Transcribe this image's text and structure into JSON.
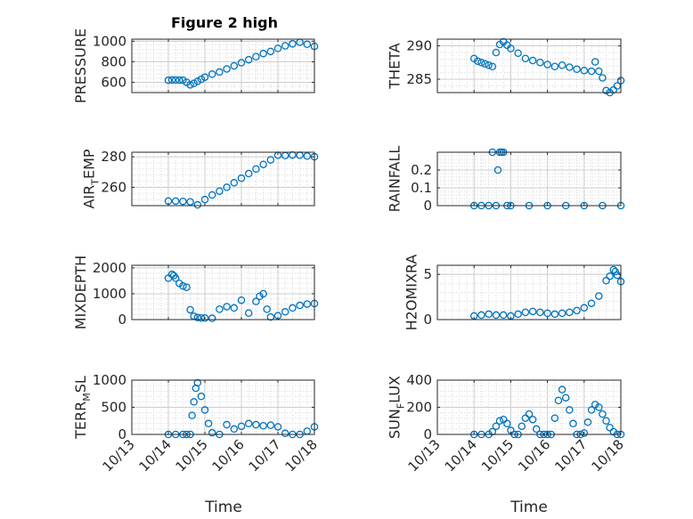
{
  "figure": {
    "title": "Figure 2 high",
    "xlabel": "Time",
    "xtick_labels": [
      "10/13",
      "10/14",
      "10/15",
      "10/16",
      "10/17",
      "10/18"
    ]
  },
  "colors": {
    "marker": "#0072bd",
    "axis": "#262626",
    "grid": "#d9d9d9"
  },
  "chart_data": [
    {
      "type": "scatter",
      "ylabel": {
        "main": "PRESSURE",
        "sub": "",
        "after": ""
      },
      "ylim": [
        500,
        1020
      ],
      "yticks": [
        600,
        800,
        1000
      ],
      "grid": true,
      "x": [
        0.0,
        0.1,
        0.2,
        0.3,
        0.4,
        0.5,
        0.6,
        0.7,
        0.8,
        0.9,
        1.0,
        1.2,
        1.4,
        1.6,
        1.8,
        2.0,
        2.2,
        2.4,
        2.6,
        2.8,
        3.0,
        3.2,
        3.4,
        3.6,
        3.8,
        4.0
      ],
      "y": [
        620,
        622,
        622,
        621,
        620,
        600,
        575,
        590,
        610,
        630,
        650,
        680,
        700,
        730,
        760,
        790,
        820,
        850,
        880,
        900,
        930,
        955,
        975,
        990,
        970,
        950
      ]
    },
    {
      "type": "scatter",
      "ylabel": {
        "main": "THETA",
        "sub": "",
        "after": ""
      },
      "ylim": [
        283,
        291
      ],
      "yticks": [
        285,
        290
      ],
      "grid": true,
      "x": [
        0.0,
        0.1,
        0.2,
        0.3,
        0.4,
        0.5,
        0.6,
        0.7,
        0.8,
        0.9,
        1.0,
        1.2,
        1.4,
        1.6,
        1.8,
        2.0,
        2.2,
        2.4,
        2.6,
        2.8,
        3.0,
        3.2,
        3.3,
        3.4,
        3.5,
        3.6,
        3.7,
        3.8,
        3.9,
        4.0
      ],
      "y": [
        288.1,
        287.7,
        287.5,
        287.3,
        287.1,
        286.9,
        289.0,
        290.2,
        290.6,
        290.1,
        289.6,
        288.9,
        288.1,
        287.8,
        287.5,
        287.2,
        286.9,
        287.1,
        286.8,
        286.5,
        286.3,
        286.2,
        287.6,
        286.2,
        285.2,
        283.3,
        283.0,
        283.4,
        284.0,
        284.8
      ]
    },
    {
      "type": "scatter",
      "ylabel": {
        "main": "AIR",
        "sub": "T",
        "after": "EMP"
      },
      "ylim": [
        248,
        283
      ],
      "yticks": [
        260,
        280
      ],
      "grid": true,
      "x": [
        0.0,
        0.2,
        0.4,
        0.6,
        0.8,
        1.0,
        1.2,
        1.4,
        1.6,
        1.8,
        2.0,
        2.2,
        2.4,
        2.6,
        2.8,
        3.0,
        3.2,
        3.4,
        3.6,
        3.8,
        4.0
      ],
      "y": [
        251.0,
        251.0,
        250.8,
        250.5,
        248.5,
        252.0,
        255.0,
        257.5,
        260.0,
        263.0,
        266.0,
        269.0,
        272.0,
        275.0,
        278.0,
        281.0,
        280.8,
        281.2,
        281.0,
        280.5,
        280.0
      ]
    },
    {
      "type": "scatter",
      "ylabel": {
        "main": "RAINFALL",
        "sub": "",
        "after": ""
      },
      "ylim": [
        0,
        0.3
      ],
      "yticks": [
        0,
        0.1,
        0.2
      ],
      "grid": true,
      "x": [
        0.0,
        0.2,
        0.4,
        0.5,
        0.6,
        0.65,
        0.7,
        0.75,
        0.8,
        0.9,
        1.0,
        1.5,
        2.0,
        2.5,
        3.0,
        3.5,
        4.0
      ],
      "y": [
        0,
        0,
        0,
        0.3,
        0,
        0.2,
        0.3,
        0.3,
        0.3,
        0,
        0,
        0,
        0,
        0,
        0,
        0,
        0
      ]
    },
    {
      "type": "scatter",
      "ylabel": {
        "main": "MIXDEPTH",
        "sub": "",
        "after": ""
      },
      "ylim": [
        0,
        2100
      ],
      "yticks": [
        0,
        1000,
        2000
      ],
      "grid": true,
      "x": [
        0.0,
        0.1,
        0.15,
        0.2,
        0.3,
        0.4,
        0.5,
        0.6,
        0.7,
        0.8,
        0.9,
        1.0,
        1.2,
        1.4,
        1.6,
        1.8,
        2.0,
        2.2,
        2.4,
        2.5,
        2.6,
        2.7,
        2.8,
        3.0,
        3.2,
        3.4,
        3.6,
        3.8,
        4.0
      ],
      "y": [
        1600,
        1750,
        1700,
        1600,
        1400,
        1300,
        1250,
        380,
        130,
        80,
        60,
        60,
        50,
        400,
        500,
        450,
        750,
        250,
        700,
        900,
        1000,
        400,
        100,
        150,
        300,
        450,
        550,
        600,
        620
      ]
    },
    {
      "type": "scatter",
      "ylabel": {
        "main": "H2OMIXRA",
        "sub": "",
        "after": ""
      },
      "ylim": [
        0,
        6
      ],
      "yticks": [
        0,
        5
      ],
      "grid": true,
      "x": [
        0.0,
        0.2,
        0.4,
        0.6,
        0.8,
        1.0,
        1.2,
        1.4,
        1.6,
        1.8,
        2.0,
        2.2,
        2.4,
        2.6,
        2.8,
        3.0,
        3.2,
        3.4,
        3.6,
        3.7,
        3.8,
        3.85,
        3.9,
        4.0
      ],
      "y": [
        0.4,
        0.5,
        0.6,
        0.5,
        0.5,
        0.4,
        0.6,
        0.8,
        0.9,
        0.8,
        0.7,
        0.6,
        0.7,
        0.8,
        1.0,
        1.3,
        1.8,
        2.6,
        4.3,
        4.8,
        5.5,
        5.3,
        4.9,
        4.2
      ]
    },
    {
      "type": "scatter",
      "ylabel": {
        "main": "TERR",
        "sub": "M",
        "after": "SL"
      },
      "ylim": [
        0,
        1000
      ],
      "yticks": [
        0,
        500,
        1000
      ],
      "grid": true,
      "x": [
        0.0,
        0.2,
        0.4,
        0.5,
        0.6,
        0.65,
        0.7,
        0.75,
        0.8,
        0.9,
        1.0,
        1.1,
        1.2,
        1.4,
        1.6,
        1.8,
        2.0,
        2.2,
        2.4,
        2.6,
        2.8,
        3.0,
        3.2,
        3.4,
        3.6,
        3.8,
        4.0
      ],
      "y": [
        0,
        0,
        0,
        0,
        0,
        350,
        600,
        850,
        950,
        700,
        450,
        200,
        30,
        0,
        180,
        100,
        150,
        200,
        180,
        160,
        170,
        140,
        20,
        0,
        0,
        60,
        140
      ]
    },
    {
      "type": "scatter",
      "ylabel": {
        "main": "SUN",
        "sub": "F",
        "after": "LUX"
      },
      "ylim": [
        0,
        400
      ],
      "yticks": [
        0,
        200,
        400
      ],
      "grid": true,
      "x": [
        0.0,
        0.2,
        0.4,
        0.5,
        0.6,
        0.7,
        0.8,
        0.9,
        1.0,
        1.1,
        1.2,
        1.3,
        1.4,
        1.5,
        1.6,
        1.7,
        1.8,
        1.9,
        2.0,
        2.1,
        2.2,
        2.3,
        2.4,
        2.5,
        2.6,
        2.7,
        2.8,
        2.9,
        3.0,
        3.1,
        3.2,
        3.3,
        3.4,
        3.5,
        3.6,
        3.7,
        3.8,
        3.9,
        4.0
      ],
      "y": [
        0,
        0,
        0,
        20,
        60,
        100,
        110,
        80,
        30,
        0,
        0,
        60,
        120,
        150,
        110,
        40,
        0,
        0,
        0,
        0,
        120,
        250,
        330,
        270,
        180,
        80,
        0,
        0,
        10,
        90,
        180,
        220,
        200,
        150,
        100,
        50,
        20,
        0,
        0
      ]
    }
  ]
}
